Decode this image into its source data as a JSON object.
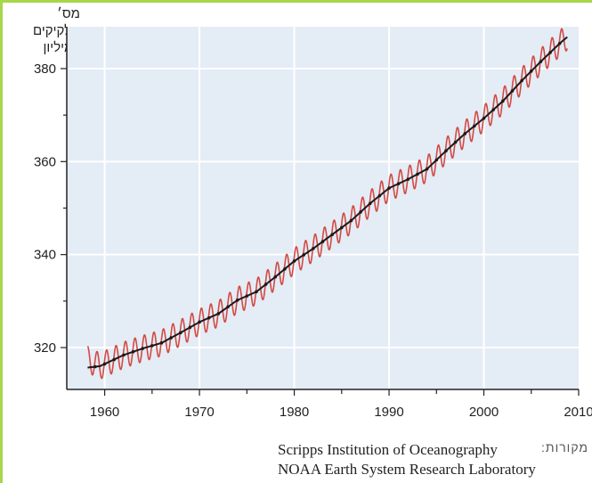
{
  "chart_data": {
    "type": "line",
    "ylabel_line1": "מס׳ חלקיקים",
    "ylabel_line2": "למיליון",
    "xlabel": "",
    "xlim": [
      1956,
      2010
    ],
    "ylim": [
      311,
      389
    ],
    "x_ticks": [
      1960,
      1970,
      1980,
      1990,
      2000,
      2010
    ],
    "y_ticks": [
      320,
      340,
      360,
      380
    ],
    "grid": true,
    "series": [
      {
        "color": "#d24a42",
        "values": [
          [
            1958.2,
            317.5
          ],
          [
            1959.5,
            316.0
          ],
          [
            1962.0,
            318.4
          ],
          [
            1964.0,
            319.8
          ],
          [
            1966.0,
            321.0
          ],
          [
            1968.0,
            323.2
          ],
          [
            1970.0,
            325.5
          ],
          [
            1972.0,
            327.3
          ],
          [
            1974.0,
            330.2
          ],
          [
            1976.0,
            332.0
          ],
          [
            1978.0,
            335.2
          ],
          [
            1980.0,
            338.6
          ],
          [
            1982.0,
            341.3
          ],
          [
            1984.0,
            344.3
          ],
          [
            1986.0,
            347.3
          ],
          [
            1988.0,
            351.0
          ],
          [
            1990.0,
            354.3
          ],
          [
            1992.0,
            356.2
          ],
          [
            1994.0,
            358.4
          ],
          [
            1996.0,
            362.3
          ],
          [
            1998.0,
            366.0
          ],
          [
            2000.0,
            369.3
          ],
          [
            2002.0,
            373.0
          ],
          [
            2004.0,
            377.4
          ],
          [
            2006.0,
            381.5
          ],
          [
            2008.0,
            385.4
          ],
          [
            2008.8,
            386.8
          ]
        ],
        "seasonal_amplitude_ppm": 2.8
      },
      {
        "color": "#1a1a1a",
        "values": [
          [
            1958.2,
            315.7
          ],
          [
            1959.5,
            316.0
          ],
          [
            1962.0,
            318.4
          ],
          [
            1964.0,
            319.8
          ],
          [
            1966.0,
            321.0
          ],
          [
            1968.0,
            323.2
          ],
          [
            1970.0,
            325.5
          ],
          [
            1972.0,
            327.3
          ],
          [
            1974.0,
            330.2
          ],
          [
            1976.0,
            332.0
          ],
          [
            1978.0,
            335.2
          ],
          [
            1980.0,
            338.6
          ],
          [
            1982.0,
            341.3
          ],
          [
            1984.0,
            344.3
          ],
          [
            1986.0,
            347.3
          ],
          [
            1988.0,
            351.0
          ],
          [
            1990.0,
            354.3
          ],
          [
            1992.0,
            356.2
          ],
          [
            1994.0,
            358.4
          ],
          [
            1996.0,
            362.3
          ],
          [
            1998.0,
            366.0
          ],
          [
            2000.0,
            369.3
          ],
          [
            2002.0,
            373.0
          ],
          [
            2004.0,
            377.4
          ],
          [
            2006.0,
            381.5
          ],
          [
            2008.0,
            385.4
          ],
          [
            2008.8,
            386.8
          ]
        ]
      }
    ],
    "colors": {
      "plot_bg": "#e4ecf6",
      "grid": "#ffffff",
      "axis": "#222222"
    }
  },
  "sources": {
    "label": "מקורות:",
    "line1": "Scripps Institution of Oceanography",
    "line2": "NOAA Earth System Research Laboratory"
  }
}
